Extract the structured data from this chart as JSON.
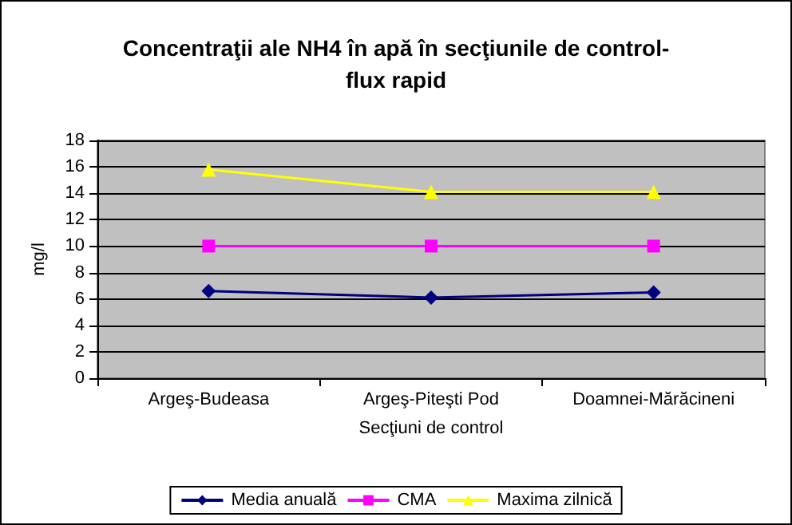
{
  "chart_data": {
    "type": "line",
    "title": "Concentraţii ale NH4 în apă în secţiunile de control-\nflux rapid",
    "xlabel": "Secţiuni de control",
    "ylabel": "mg/l",
    "categories": [
      "Argeş-Budeasa",
      "Argeş-Piteşti Pod",
      "Doamnei-Mărăcineni"
    ],
    "series": [
      {
        "name": "Media anuală",
        "color": "#000080",
        "marker": "diamond",
        "values": [
          6.6,
          6.1,
          6.5
        ]
      },
      {
        "name": "CMA",
        "color": "#ff00ff",
        "marker": "square",
        "values": [
          10,
          10,
          10
        ]
      },
      {
        "name": "Maxima zilnică",
        "color": "#ffff00",
        "marker": "triangle",
        "values": [
          15.8,
          14.1,
          14.1
        ]
      }
    ],
    "ylim": [
      0,
      18
    ],
    "yticks": [
      0,
      2,
      4,
      6,
      8,
      10,
      12,
      14,
      16,
      18
    ],
    "grid": "y",
    "legend": "bottom"
  }
}
